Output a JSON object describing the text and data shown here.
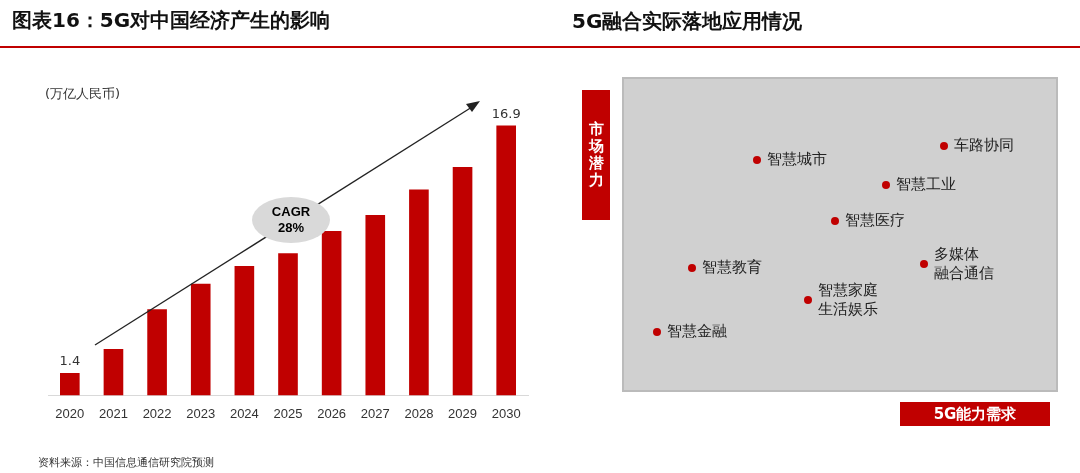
{
  "chart_data": [
    {
      "type": "bar",
      "title": "图表16：5G对中国经济产生的影响",
      "categories": [
        "2020",
        "2021",
        "2022",
        "2023",
        "2024",
        "2025",
        "2026",
        "2027",
        "2028",
        "2029",
        "2030"
      ],
      "values": [
        1.4,
        2.9,
        5.4,
        7.0,
        8.1,
        8.9,
        10.3,
        11.3,
        12.9,
        14.3,
        16.9
      ],
      "color": "#c00000",
      "value_labels": [
        "1.4",
        null,
        null,
        null,
        null,
        null,
        null,
        null,
        null,
        null,
        "16.9"
      ],
      "annotations": [
        "(万亿人民币)",
        "CAGR\n28%",
        "资料来源：中国信息通信研究院预测"
      ]
    },
    {
      "type": "other",
      "title": "5G融合实际落地应用情况",
      "xlabel": "5G能力需求",
      "ylabel": "市场潜力",
      "annotations": [
        "智慧城市",
        "车路协同",
        "智慧工业",
        "智慧医疗",
        "多媒体融合通信",
        "智慧教育",
        "智慧家庭生活娱乐",
        "智慧金融"
      ]
    }
  ]
}
